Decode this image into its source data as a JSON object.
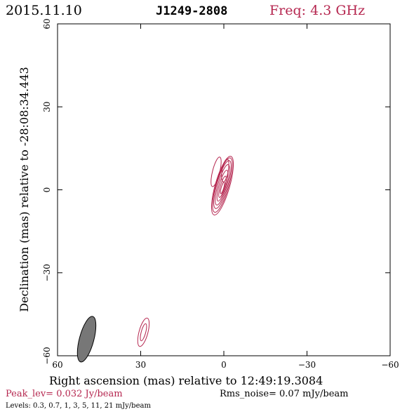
{
  "header": {
    "date": "2015.11.10",
    "source": "J1249-2808",
    "frequency": "Freq: 4.3 GHz"
  },
  "footer": {
    "peak": "Peak_lev=  0.032 Jy/beam",
    "rms": "Rms_noise= 0.07 mJy/beam",
    "levels": "Levels: 0.3, 0.7,   1,   3,   5,  11,  21 mJy/beam"
  },
  "colors": {
    "contour": "#b5264f",
    "beam": "#777777",
    "axes": "#000000"
  },
  "chart_data": {
    "type": "contour",
    "xlabel": "Right ascension (mas) relative to 12:49:19.3084",
    "ylabel": "Declination (mas) relative to -28:08:34.443",
    "xlim": [
      60,
      -60
    ],
    "ylim": [
      -60,
      60
    ],
    "xticks": [
      60,
      30,
      0,
      -30,
      -60
    ],
    "yticks": [
      60,
      30,
      0,
      -30,
      -60
    ],
    "contour_levels_mJy_per_beam": [
      0.3,
      0.7,
      1,
      3,
      5,
      11,
      21
    ],
    "peak_Jy_per_beam": 0.032,
    "rms_noise_mJy_per_beam": 0.07,
    "beam": {
      "center": [
        49.5,
        -54
      ],
      "major_mas": 8.5,
      "minor_mas": 2.6,
      "pa_deg": 15
    },
    "components": [
      {
        "name": "core",
        "center": [
          0.5,
          1.5
        ],
        "contours": [
          {
            "major": 11,
            "minor": 2.6,
            "pa": 16,
            "dx": 0,
            "dy": 0
          },
          {
            "major": 10.2,
            "minor": 2.3,
            "pa": 16,
            "dx": 0,
            "dy": 0.2
          },
          {
            "major": 9.0,
            "minor": 2.0,
            "pa": 16,
            "dx": 0,
            "dy": 0.4
          },
          {
            "major": 7.6,
            "minor": 1.6,
            "pa": 16,
            "dx": 0,
            "dy": 0.3
          },
          {
            "major": 5.8,
            "minor": 1.2,
            "pa": 16,
            "dx": 0,
            "dy": 0
          },
          {
            "major": 4.0,
            "minor": 0.8,
            "pa": 16,
            "dx": 0,
            "dy": -0.4
          },
          {
            "major": 2.2,
            "minor": 0.45,
            "pa": 16,
            "dx": 0,
            "dy": -0.8
          }
        ]
      },
      {
        "name": "ext-north",
        "center": [
          2.8,
          6.5
        ],
        "contours": [
          {
            "major": 5.5,
            "minor": 1.3,
            "pa": 14,
            "dx": 0,
            "dy": 0
          }
        ]
      },
      {
        "name": "ext-northwest",
        "center": [
          -0.5,
          7.0
        ],
        "contours": [
          {
            "major": 4.2,
            "minor": 1.1,
            "pa": 10,
            "dx": 0,
            "dy": 0
          }
        ]
      },
      {
        "name": "feature-southeast",
        "center": [
          29.0,
          -51.5
        ],
        "contours": [
          {
            "major": 5.3,
            "minor": 1.6,
            "pa": 15,
            "dx": 0,
            "dy": 0
          },
          {
            "major": 3.2,
            "minor": 0.8,
            "pa": 15,
            "dx": 0,
            "dy": 0
          }
        ]
      }
    ]
  }
}
